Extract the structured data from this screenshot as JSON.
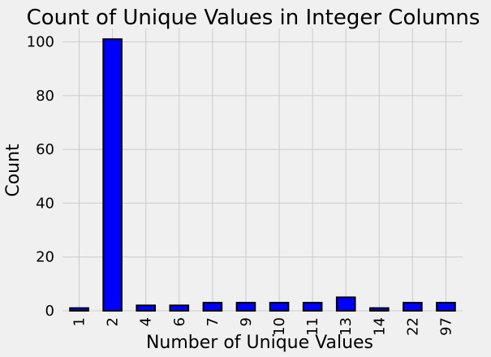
{
  "chart_data": {
    "type": "bar",
    "title": "Count of Unique Values in Integer Columns",
    "xlabel": "Number of Unique Values",
    "ylabel": "Count",
    "categories": [
      "1",
      "2",
      "4",
      "6",
      "7",
      "9",
      "10",
      "11",
      "13",
      "14",
      "22",
      "97"
    ],
    "values": [
      1,
      101,
      2,
      2,
      3,
      3,
      3,
      3,
      5,
      1,
      3,
      3
    ],
    "ylim": [
      0,
      105
    ],
    "yticks": [
      0,
      20,
      40,
      60,
      80,
      100
    ],
    "grid": true,
    "bar_color": "#0000ff",
    "edge_color": "#000000",
    "background": "#f0f0f0",
    "grid_color": "#cbcbcb"
  }
}
